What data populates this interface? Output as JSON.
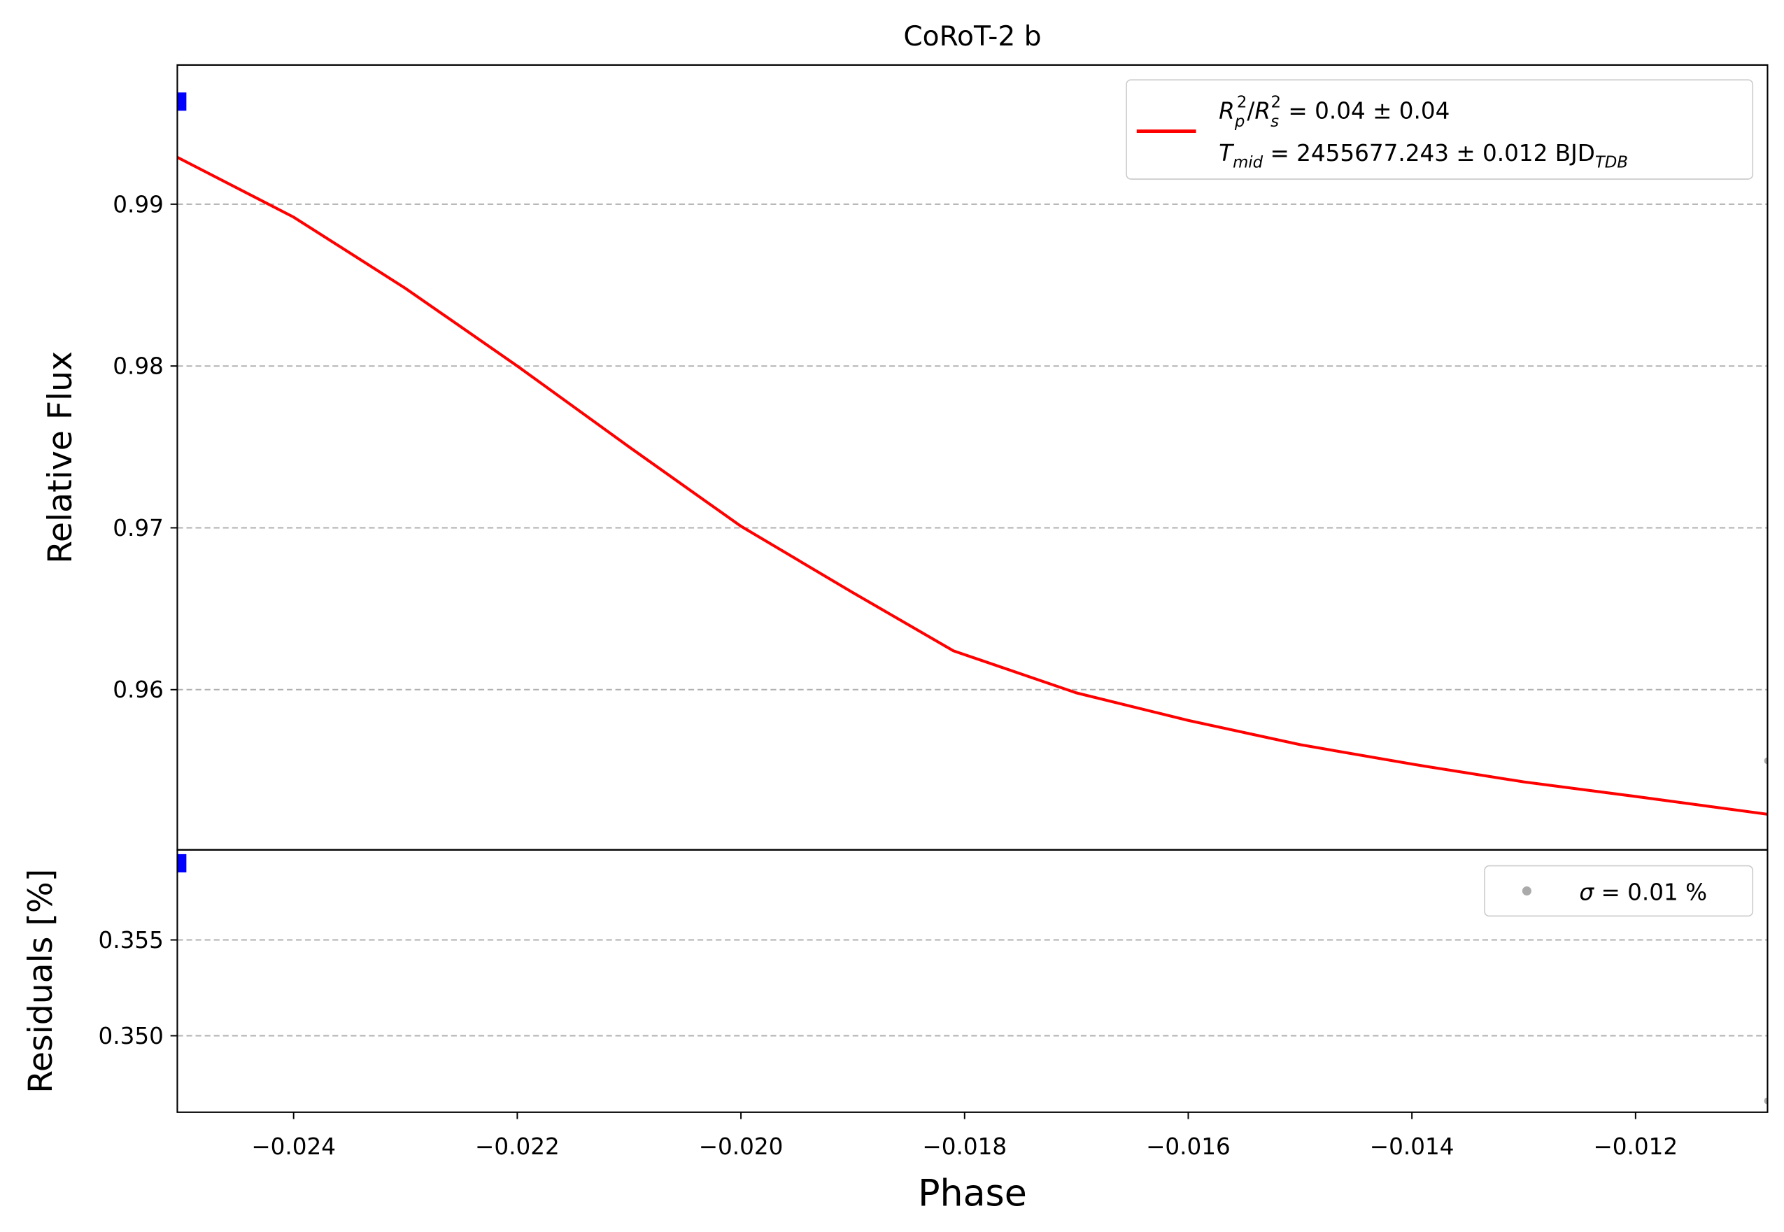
{
  "chart_data": [
    {
      "type": "line",
      "title": "CoRoT-2 b",
      "ylabel": "Relative Flux",
      "xlim": [
        -0.02504,
        -0.01082
      ],
      "ylim": [
        0.9501,
        0.9986
      ],
      "yticks": [
        0.96,
        0.97,
        0.98,
        0.99
      ],
      "grid": true,
      "series": [
        {
          "name": "model",
          "kind": "line",
          "color": "#ff0000",
          "x": [
            -0.02504,
            -0.024,
            -0.023,
            -0.022,
            -0.021,
            -0.02,
            -0.019,
            -0.0181,
            -0.017,
            -0.016,
            -0.015,
            -0.014,
            -0.013,
            -0.012,
            -0.01082
          ],
          "values": [
            0.9929,
            0.9892,
            0.9848,
            0.98,
            0.975,
            0.9701,
            0.966,
            0.9624,
            0.9598,
            0.9581,
            0.9566,
            0.9554,
            0.9543,
            0.9534,
            0.9523
          ]
        },
        {
          "name": "data",
          "kind": "scatter",
          "color": "#aaaaaa",
          "x": [
            -0.01082
          ],
          "values": [
            0.9556
          ]
        },
        {
          "name": "binned",
          "kind": "square",
          "color": "#0000ff",
          "x": [
            -0.025
          ],
          "values": [
            0.99634
          ]
        }
      ],
      "legend": {
        "line1": [
          "R",
          "p",
          "2",
          "/",
          "R",
          "s",
          "2",
          " = 0.04 ± 0.04"
        ],
        "line2": [
          "T",
          "mid",
          " = 2455677.243 ± 0.012 BJD",
          "TDB"
        ]
      }
    },
    {
      "type": "scatter",
      "ylabel": "Residuals [%]",
      "xlabel": "Phase",
      "xlim": [
        -0.02504,
        -0.01082
      ],
      "ylim": [
        0.34601,
        0.3597
      ],
      "yticks": [
        {
          "value": 0.35,
          "label": "0.350"
        },
        {
          "value": 0.355,
          "label": "0.355"
        }
      ],
      "xticks": [
        {
          "value": -0.024,
          "label": "−0.024"
        },
        {
          "value": -0.022,
          "label": "−0.022"
        },
        {
          "value": -0.02,
          "label": "−0.020"
        },
        {
          "value": -0.018,
          "label": "−0.018"
        },
        {
          "value": -0.016,
          "label": "−0.016"
        },
        {
          "value": -0.014,
          "label": "−0.014"
        },
        {
          "value": -0.012,
          "label": "−0.012"
        }
      ],
      "grid": true,
      "series": [
        {
          "name": "data",
          "kind": "scatter",
          "color": "#aaaaaa",
          "x": [
            -0.01082
          ],
          "values": [
            0.3466
          ]
        },
        {
          "name": "binned",
          "kind": "square",
          "color": "#0000ff",
          "x": [
            -0.025
          ],
          "values": [
            0.359
          ]
        }
      ],
      "legend": {
        "line1": [
          "σ",
          " = 0.01 %"
        ]
      }
    }
  ]
}
